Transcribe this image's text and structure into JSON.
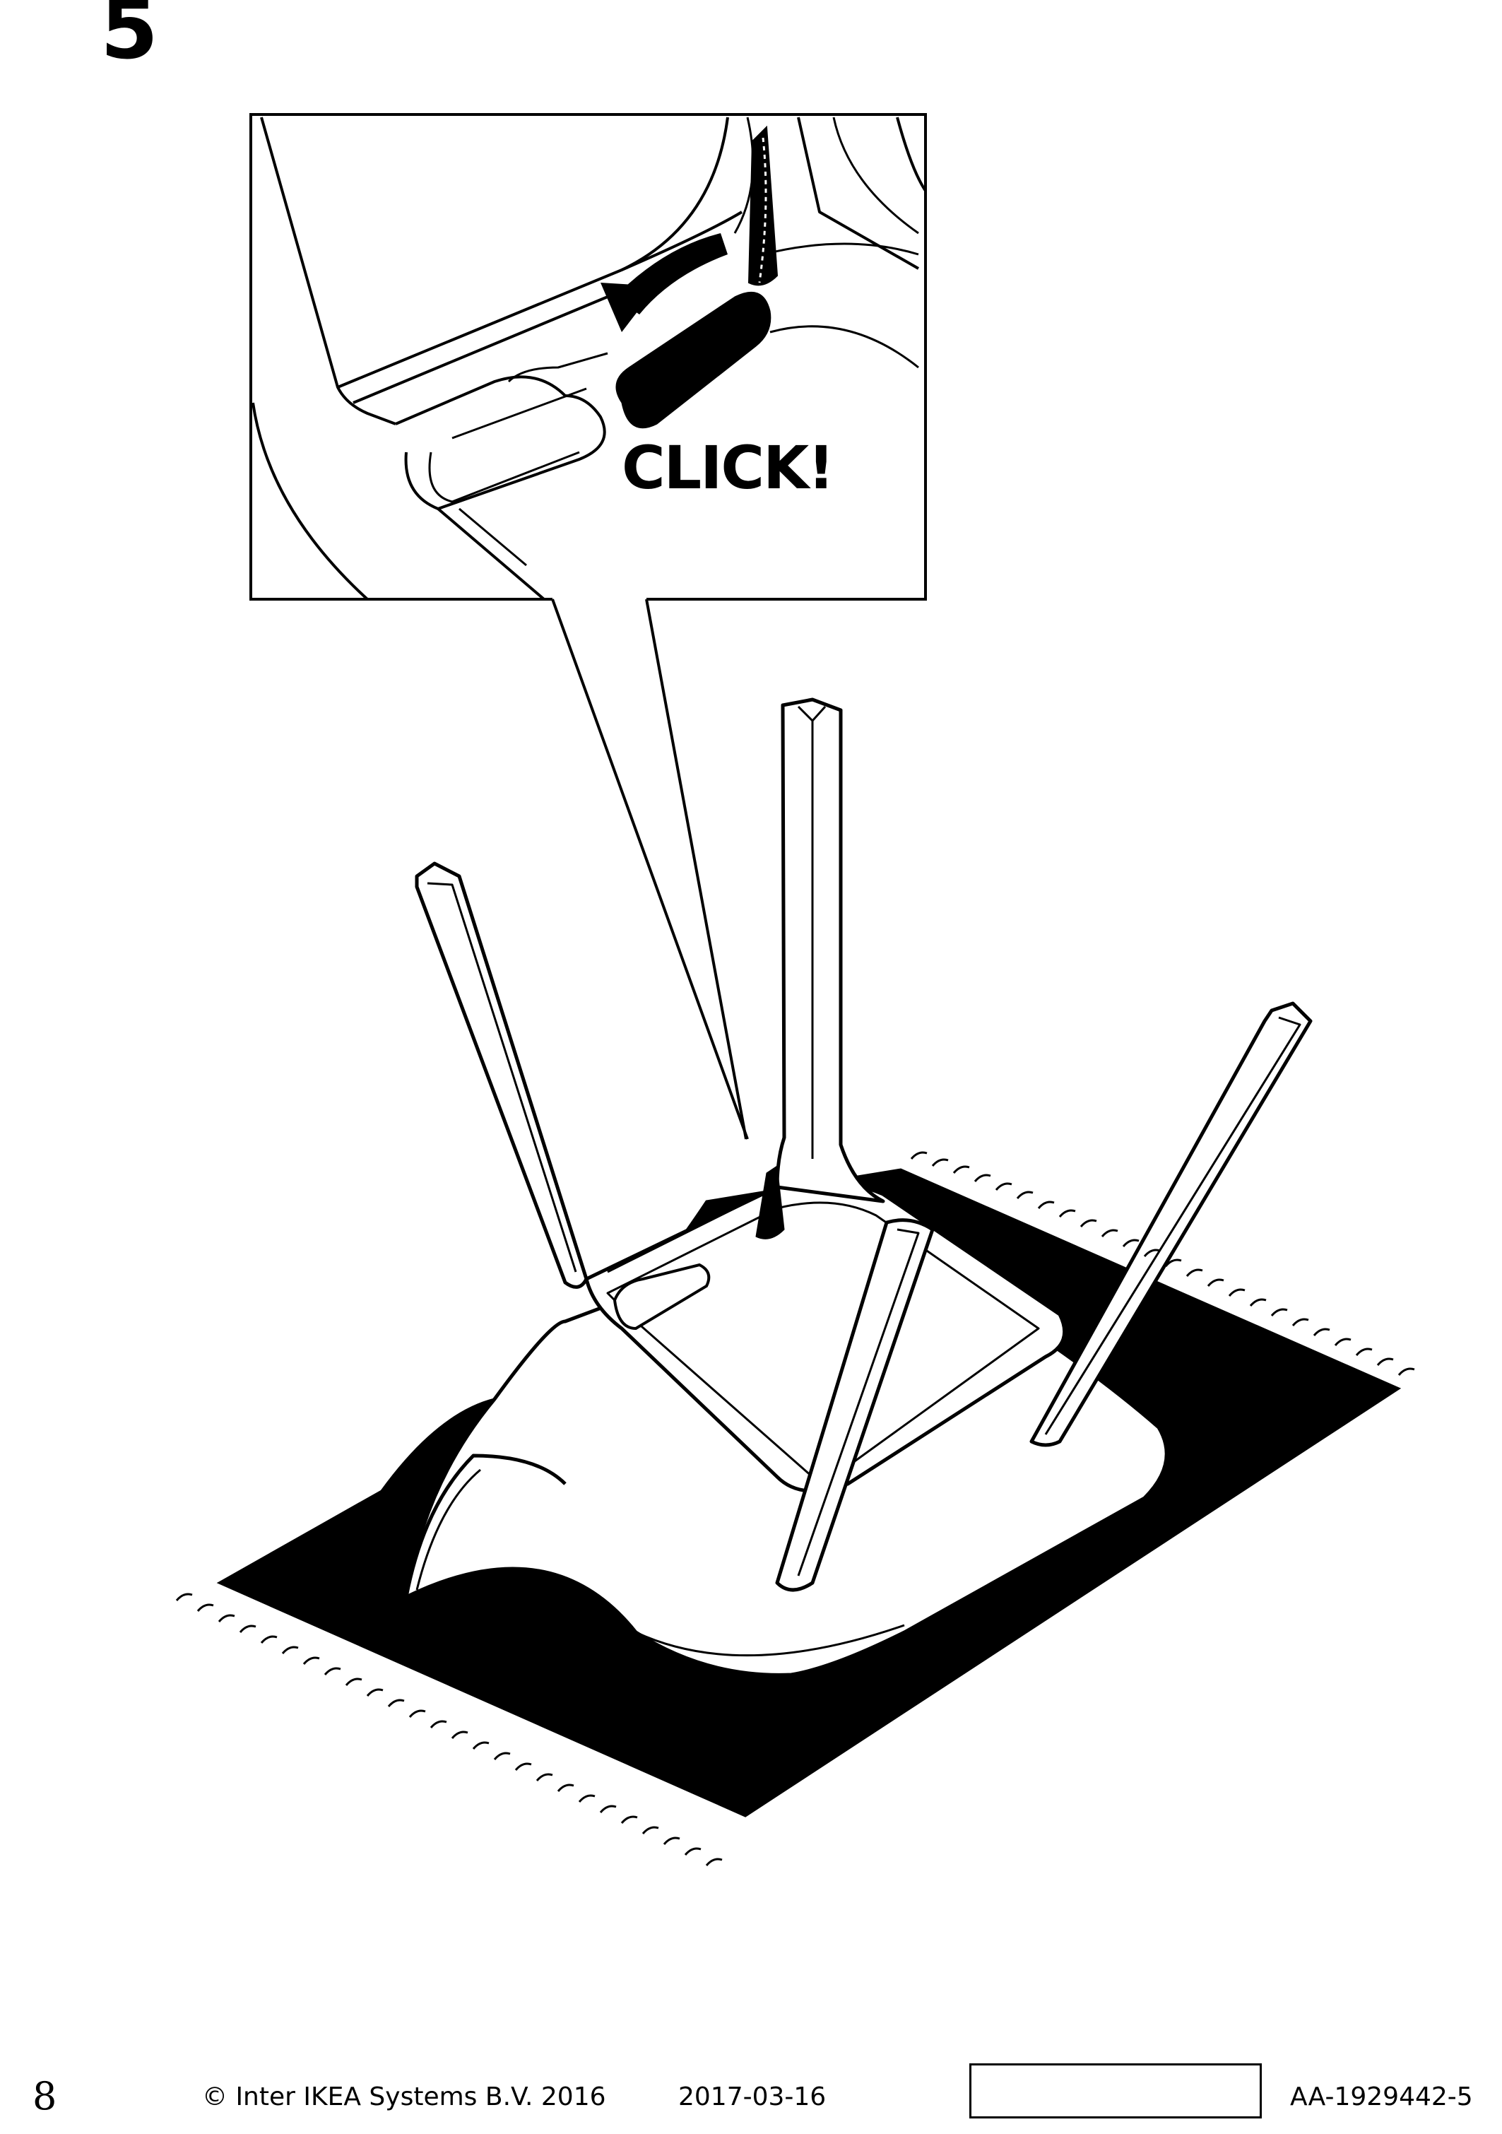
{
  "step": {
    "number": "5"
  },
  "callout": {
    "text": "CLICK!"
  },
  "icons": [
    "rotate-arrow-icon"
  ],
  "footer": {
    "page_number": "8",
    "copyright": "© Inter IKEA Systems B.V. 2016",
    "date": "2017-03-16",
    "doc_code": "AA-1929442-5"
  }
}
